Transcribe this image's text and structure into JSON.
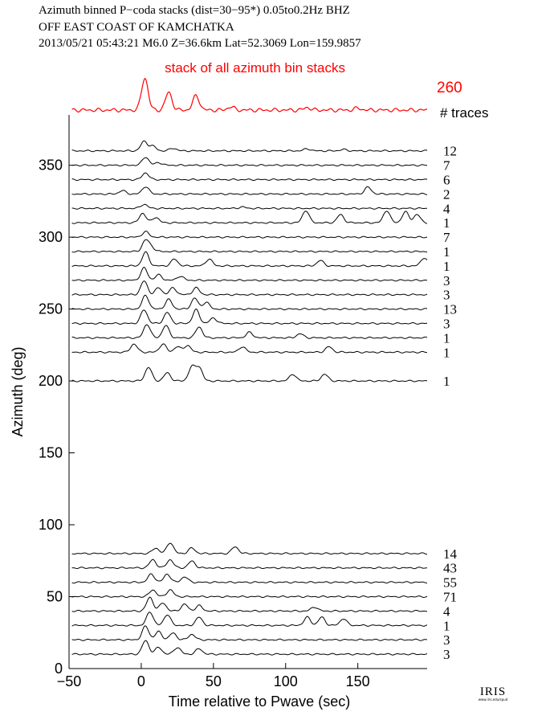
{
  "header": {
    "line1": "Azimuth binned P−coda stacks (dist=30−95*)  0.05to0.2Hz  BHZ",
    "line2": "OFF EAST COAST OF KAMCHATKA",
    "line3": "2013/05/21  05:43:21  M6.0  Z=36.6km Lat=52.3069 Lon=159.9857"
  },
  "logo": {
    "text": "IRIS",
    "sub": "www.iris.edu/spud"
  },
  "colors": {
    "summary": "#ff0000",
    "traces": "#000000"
  },
  "chart_data": {
    "type": "line",
    "title": "",
    "xlabel": "Time relative to Pwave (sec)",
    "ylabel": "Azimuth (deg)",
    "xlim": [
      -50,
      198
    ],
    "ylim": [
      0,
      385
    ],
    "xticks": [
      {
        "value": -50,
        "label": "−50"
      },
      {
        "value": 0,
        "label": "0"
      },
      {
        "value": 50,
        "label": "50"
      },
      {
        "value": 100,
        "label": "100"
      },
      {
        "value": 150,
        "label": "150"
      }
    ],
    "yticks": [
      {
        "value": 0,
        "label": "0"
      },
      {
        "value": 50,
        "label": "50"
      },
      {
        "value": 100,
        "label": "100"
      },
      {
        "value": 150,
        "label": "150"
      },
      {
        "value": 200,
        "label": "200"
      },
      {
        "value": 250,
        "label": "250"
      },
      {
        "value": 300,
        "label": "300"
      },
      {
        "value": 350,
        "label": "350"
      }
    ],
    "summary": {
      "label": "stack of all azimuth bin stacks",
      "count": "260",
      "count_header": "# traces",
      "peaks": [
        [
          2.5,
          1.0
        ],
        [
          19,
          0.55
        ],
        [
          38,
          0.45
        ],
        [
          62,
          0.1
        ],
        [
          115,
          0.08
        ],
        [
          150,
          0.06
        ]
      ]
    },
    "series": [
      {
        "azimuth": 360,
        "count": "12",
        "peaks": [
          [
            2,
            0.7
          ],
          [
            8,
            0.35
          ],
          [
            22,
            0.2
          ],
          [
            115,
            0.15
          ],
          [
            140,
            0.1
          ]
        ]
      },
      {
        "azimuth": 350,
        "count": "7",
        "peaks": [
          [
            3,
            0.6
          ],
          [
            12,
            0.2
          ]
        ]
      },
      {
        "azimuth": 340,
        "count": "6",
        "peaks": [
          [
            3,
            0.5
          ]
        ]
      },
      {
        "azimuth": 330,
        "count": "2",
        "peaks": [
          [
            3,
            0.55
          ],
          [
            -13,
            0.25
          ],
          [
            157,
            0.5
          ]
        ]
      },
      {
        "azimuth": 320,
        "count": "4",
        "peaks": [
          [
            2,
            0.3
          ],
          [
            70,
            0.1
          ]
        ]
      },
      {
        "azimuth": 310,
        "count": "1",
        "peaks": [
          [
            1,
            0.7
          ],
          [
            10,
            0.4
          ],
          [
            114,
            0.9
          ],
          [
            138,
            0.6
          ],
          [
            170,
            0.9
          ],
          [
            183,
            0.8
          ],
          [
            191,
            0.6
          ]
        ]
      },
      {
        "azimuth": 300,
        "count": "7",
        "peaks": [
          [
            3,
            0.4
          ]
        ]
      },
      {
        "azimuth": 290,
        "count": "1",
        "peaks": [
          [
            3,
            0.8
          ],
          [
            7,
            0.3
          ]
        ]
      },
      {
        "azimuth": 280,
        "count": "1",
        "peaks": [
          [
            3,
            1.0
          ],
          [
            23,
            0.5
          ],
          [
            47,
            0.5
          ],
          [
            124,
            0.4
          ],
          [
            196,
            0.6
          ]
        ]
      },
      {
        "azimuth": 270,
        "count": "3",
        "peaks": [
          [
            2,
            0.9
          ],
          [
            12,
            0.4
          ],
          [
            27,
            0.3
          ]
        ]
      },
      {
        "azimuth": 260,
        "count": "3",
        "peaks": [
          [
            2,
            1.0
          ],
          [
            12,
            0.5
          ],
          [
            22,
            0.5
          ],
          [
            38,
            0.5
          ]
        ]
      },
      {
        "azimuth": 250,
        "count": "13",
        "peaks": [
          [
            3,
            1.0
          ],
          [
            19,
            0.7
          ],
          [
            37,
            0.8
          ],
          [
            45,
            0.5
          ]
        ]
      },
      {
        "azimuth": 240,
        "count": "3",
        "peaks": [
          [
            2,
            1.0
          ],
          [
            18,
            0.8
          ],
          [
            38,
            1.0
          ],
          [
            50,
            0.4
          ]
        ]
      },
      {
        "azimuth": 230,
        "count": "1",
        "peaks": [
          [
            4,
            1.0
          ],
          [
            17,
            0.9
          ],
          [
            40,
            0.8
          ],
          [
            75,
            0.4
          ],
          [
            110,
            0.3
          ]
        ]
      },
      {
        "azimuth": 220,
        "count": "1",
        "peaks": [
          [
            -5,
            0.6
          ],
          [
            15,
            0.6
          ],
          [
            25,
            0.4
          ],
          [
            32,
            0.5
          ],
          [
            70,
            0.4
          ],
          [
            130,
            0.4
          ]
        ]
      },
      {
        "azimuth": 200,
        "count": "1",
        "peaks": [
          [
            5,
            1.0
          ],
          [
            18,
            0.6
          ],
          [
            35,
            1.0
          ],
          [
            40,
            1.0
          ],
          [
            105,
            0.5
          ],
          [
            127,
            0.5
          ]
        ]
      },
      {
        "azimuth": 80,
        "count": "14",
        "peaks": [
          [
            10,
            0.4
          ],
          [
            20,
            0.8
          ],
          [
            35,
            0.4
          ],
          [
            65,
            0.5
          ]
        ]
      },
      {
        "azimuth": 70,
        "count": "43",
        "peaks": [
          [
            8,
            0.6
          ],
          [
            20,
            0.6
          ],
          [
            35,
            0.5
          ]
        ]
      },
      {
        "azimuth": 60,
        "count": "55",
        "peaks": [
          [
            7,
            0.6
          ],
          [
            18,
            0.6
          ],
          [
            30,
            0.4
          ]
        ]
      },
      {
        "azimuth": 50,
        "count": "71",
        "peaks": [
          [
            8,
            0.5
          ],
          [
            20,
            0.5
          ]
        ]
      },
      {
        "azimuth": 40,
        "count": "4",
        "peaks": [
          [
            6,
            1.0
          ],
          [
            15,
            0.6
          ],
          [
            30,
            0.5
          ],
          [
            40,
            0.4
          ],
          [
            120,
            0.3
          ]
        ]
      },
      {
        "azimuth": 30,
        "count": "1",
        "peaks": [
          [
            6,
            1.0
          ],
          [
            18,
            0.8
          ],
          [
            40,
            0.6
          ],
          [
            115,
            0.6
          ],
          [
            125,
            0.6
          ],
          [
            140,
            0.5
          ]
        ]
      },
      {
        "azimuth": 20,
        "count": "3",
        "peaks": [
          [
            3,
            1.0
          ],
          [
            12,
            0.6
          ],
          [
            22,
            0.5
          ],
          [
            35,
            0.4
          ]
        ]
      },
      {
        "azimuth": 10,
        "count": "3",
        "peaks": [
          [
            3,
            1.0
          ],
          [
            12,
            0.5
          ],
          [
            25,
            0.5
          ],
          [
            40,
            0.4
          ]
        ]
      }
    ]
  }
}
